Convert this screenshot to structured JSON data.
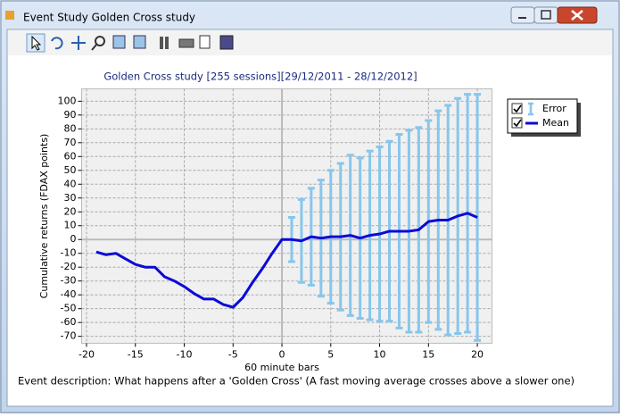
{
  "window": {
    "title": "Event Study Golden Cross study"
  },
  "footer": {
    "description": "Event description: What happens after a 'Golden Cross' (A fast moving average crosses above a slower one)"
  },
  "chart_data": {
    "type": "errorbar-line",
    "title": "Golden Cross study  [255 sessions][29/12/2011 - 28/12/2012]",
    "x_label": "60 minute bars",
    "y_label": "Cumulative returns (FDAX points)",
    "x": [
      -19,
      -18,
      -17,
      -16,
      -15,
      -14,
      -13,
      -12,
      -11,
      -10,
      -9,
      -8,
      -7,
      -6,
      -5,
      -4,
      -3,
      -2,
      -1,
      0,
      1,
      2,
      3,
      4,
      5,
      6,
      7,
      8,
      9,
      10,
      11,
      12,
      13,
      14,
      15,
      16,
      17,
      18,
      19,
      20
    ],
    "series": [
      {
        "name": "Error",
        "color": "#87c6ec",
        "values": [
          null,
          null,
          null,
          null,
          null,
          null,
          null,
          null,
          null,
          null,
          null,
          null,
          null,
          null,
          null,
          null,
          null,
          null,
          null,
          null,
          16,
          30,
          35,
          42,
          48,
          53,
          58,
          58,
          61,
          63,
          65,
          70,
          73,
          74,
          73,
          79,
          83,
          85,
          86,
          89
        ]
      },
      {
        "name": "Mean",
        "color": "#0a0ad8",
        "values": [
          -9,
          -11,
          -10,
          -14,
          -18,
          -20,
          -20,
          -27,
          -30,
          -34,
          -39,
          -43,
          -43,
          -47,
          -49,
          -42,
          -31,
          -21,
          -10,
          0,
          0,
          -1,
          2,
          1,
          2,
          2,
          3,
          1,
          3,
          4,
          6,
          6,
          6,
          7,
          13,
          14,
          14,
          17,
          19,
          16
        ]
      }
    ],
    "xlim": [
      -20.5,
      21.5
    ],
    "ylim": [
      -75,
      109
    ],
    "xticks": [
      -20,
      -15,
      -10,
      -5,
      0,
      5,
      10,
      15,
      20
    ],
    "yticks": [
      -70,
      -60,
      -50,
      -40,
      -30,
      -20,
      -10,
      0,
      10,
      20,
      30,
      40,
      50,
      60,
      70,
      80,
      90,
      100
    ],
    "grid": true,
    "legend": "right"
  }
}
